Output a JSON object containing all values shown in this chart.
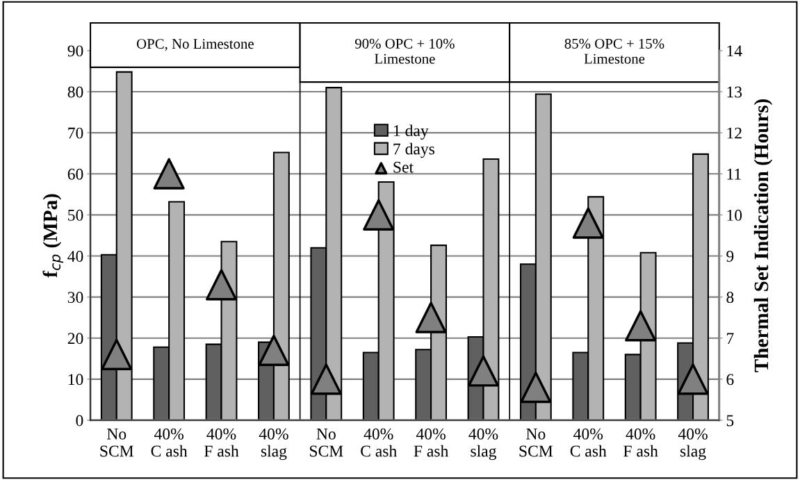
{
  "chart_data": {
    "type": "bar",
    "categories": [
      "No\nSCM",
      "40%\nC ash",
      "40%\nF ash",
      "40%\nslag",
      "No\nSCM",
      "40%\nC ash",
      "40%\nF ash",
      "40%\nslag",
      "No\nSCM",
      "40%\nC ash",
      "40%\nF ash",
      "40%\nslag"
    ],
    "series": [
      {
        "name": "1 day",
        "color": "#606060",
        "values": [
          40.3,
          17.8,
          18.5,
          19.0,
          42.0,
          16.5,
          17.2,
          20.3,
          38.0,
          16.5,
          16.0,
          18.8
        ]
      },
      {
        "name": "7 days",
        "color": "#b3b3b3",
        "values": [
          84.8,
          53.2,
          43.5,
          65.2,
          81.0,
          58.0,
          42.6,
          63.6,
          79.4,
          54.4,
          40.8,
          64.8
        ]
      },
      {
        "name": "Set",
        "type": "scatter",
        "axis": "y2",
        "marker": "triangle",
        "color": "#808080",
        "values": [
          6.6,
          11.0,
          8.3,
          6.7,
          6.0,
          10.0,
          7.5,
          6.2,
          5.8,
          9.8,
          7.3,
          6.0
        ]
      }
    ],
    "ylabel": "f$_{cp}$ (MPa)",
    "y2label": "Thermal Set Indication (Hours)",
    "ylim": [
      0,
      90
    ],
    "yticks": [
      0,
      10,
      20,
      30,
      40,
      50,
      60,
      70,
      80,
      90
    ],
    "y2lim": [
      5,
      14
    ],
    "y2ticks": [
      5,
      6,
      7,
      8,
      9,
      10,
      11,
      12,
      13,
      14
    ],
    "annotations": [
      "OPC, No Limestone",
      "90% OPC + 10%\nLimestone",
      "85% OPC + 15%\nLimestone"
    ],
    "grid": "y",
    "legend": "top"
  }
}
